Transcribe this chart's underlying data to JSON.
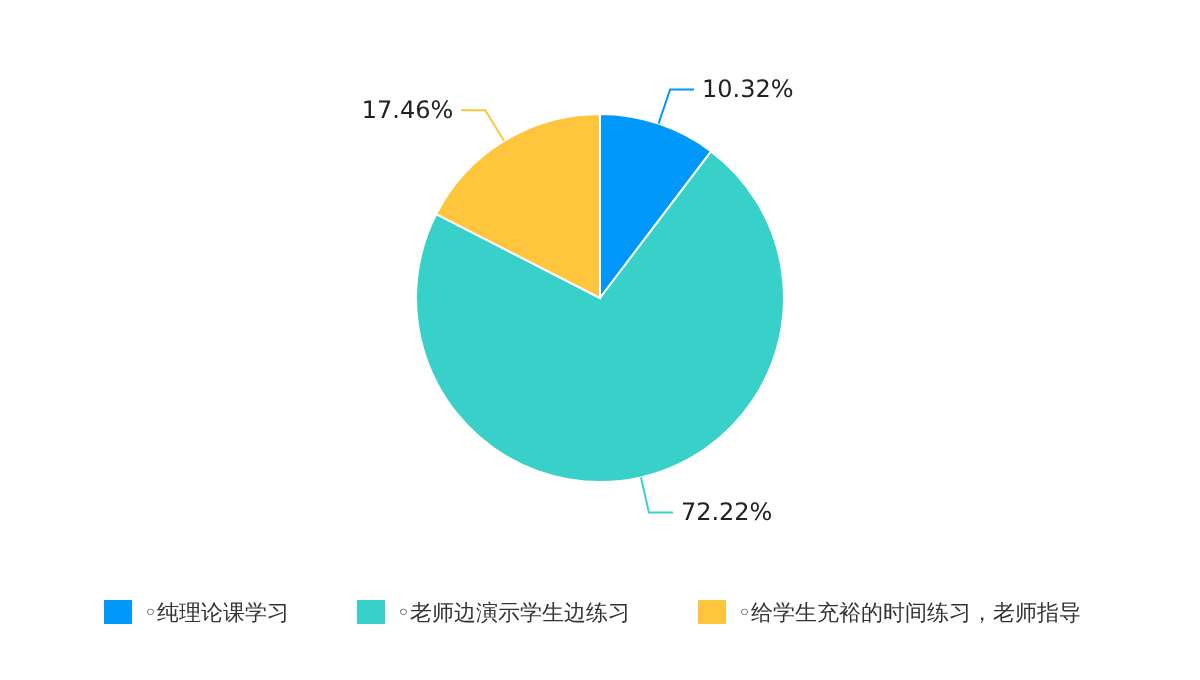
{
  "chart_data": {
    "type": "pie",
    "categories": [
      "◦纯理论课学习",
      "◦老师边演示学生边练习",
      "◦给学生充裕的时间练习，老师指导"
    ],
    "values": [
      10.32,
      72.22,
      17.46
    ],
    "colors": [
      "#0098fb",
      "#37d1c9",
      "#ffc53d"
    ],
    "value_labels": [
      "10.32%",
      "72.22%",
      "17.46%"
    ],
    "legend": "bottom"
  }
}
